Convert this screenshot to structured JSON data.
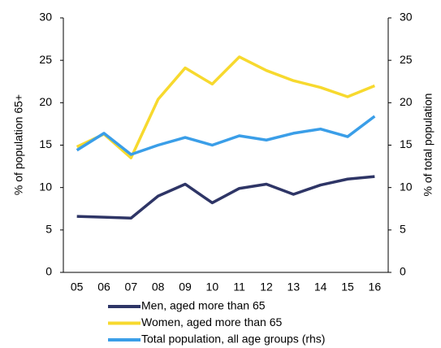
{
  "chart_data": {
    "type": "line",
    "categories": [
      "05",
      "06",
      "07",
      "08",
      "09",
      "10",
      "11",
      "12",
      "13",
      "14",
      "15",
      "16"
    ],
    "ylabel": "% of population 65+",
    "y2label": "% of total population",
    "ylim": [
      0,
      30
    ],
    "yticks": [
      0,
      5,
      10,
      15,
      20,
      25,
      30
    ],
    "y2lim": [
      0,
      30
    ],
    "y2ticks": [
      0,
      5,
      10,
      15,
      20,
      25,
      30
    ],
    "legend": "bottom",
    "series": [
      {
        "name": "Men, aged more than 65",
        "color": "#2e3566",
        "values": [
          6.6,
          6.5,
          6.4,
          9.0,
          10.4,
          8.2,
          9.9,
          10.4,
          9.2,
          10.3,
          11.0,
          11.3
        ]
      },
      {
        "name": "Women, aged more than 65",
        "color": "#f7d92e",
        "values": [
          14.8,
          16.3,
          13.5,
          20.4,
          24.1,
          22.2,
          25.4,
          23.8,
          22.6,
          21.8,
          20.7,
          22.0
        ]
      },
      {
        "name": "Total population, all age groups (rhs)",
        "color": "#3a9ee8",
        "axis": "y2",
        "values": [
          14.4,
          16.4,
          13.9,
          15.0,
          15.9,
          15.0,
          16.1,
          15.6,
          16.4,
          16.9,
          16.0,
          18.4
        ]
      }
    ]
  }
}
